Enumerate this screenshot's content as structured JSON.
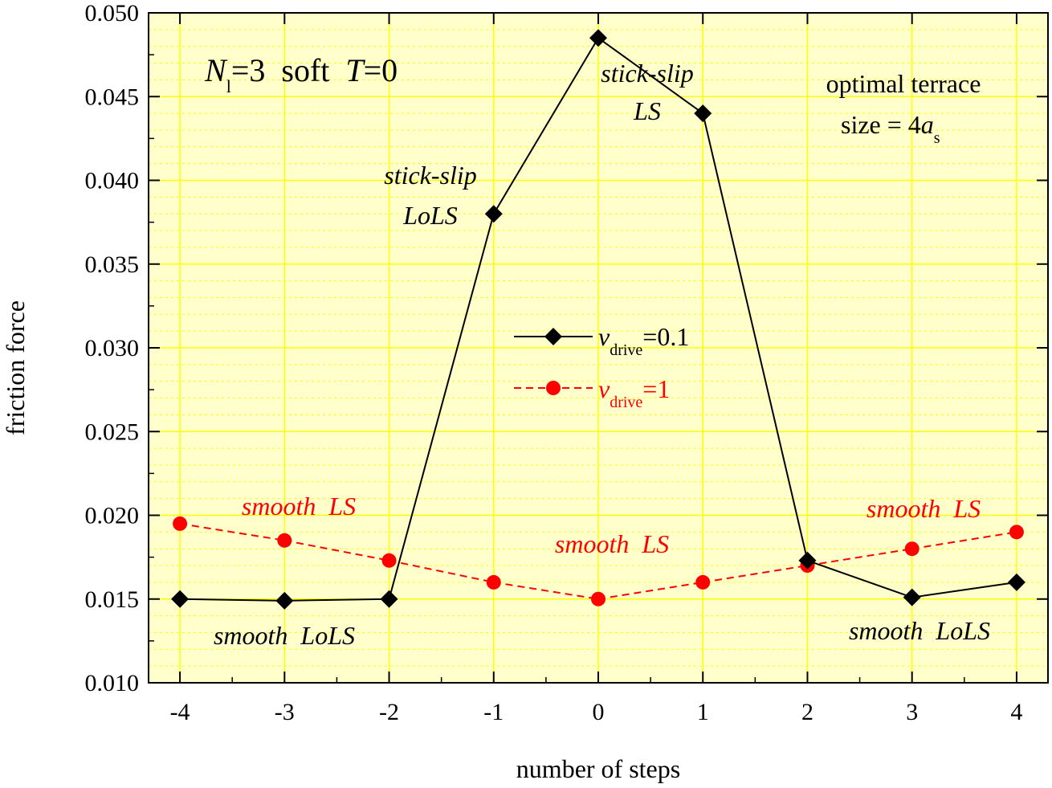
{
  "chart_data": {
    "type": "line",
    "xlabel": "number of steps",
    "ylabel": "friction force",
    "xlim": [
      -4.3,
      4.3
    ],
    "ylim": [
      0.01,
      0.05
    ],
    "x_ticks": [
      "-4",
      "-3",
      "-2",
      "-1",
      "0",
      "1",
      "2",
      "3",
      "4"
    ],
    "y_ticks": [
      "0.010",
      "0.015",
      "0.020",
      "0.025",
      "0.030",
      "0.035",
      "0.040",
      "0.045",
      "0.050"
    ],
    "grid": true,
    "plot_background": "#ffffcc",
    "grid_color": "#ffff00",
    "series": [
      {
        "legend_symbol": "v",
        "legend_subscript": "drive",
        "legend_value": "=0.1",
        "color": "#000000",
        "marker": "diamond",
        "line_style": "solid",
        "x": [
          -4,
          -3,
          -2,
          -1,
          0,
          1,
          2,
          3,
          4
        ],
        "y": [
          0.015,
          0.0149,
          0.015,
          0.038,
          0.0485,
          0.044,
          0.0173,
          0.0151,
          0.016
        ]
      },
      {
        "legend_symbol": "v",
        "legend_subscript": "drive",
        "legend_value": "=1",
        "color": "#ff0000",
        "marker": "circle",
        "line_style": "dashed",
        "x": [
          -4,
          -3,
          -2,
          -1,
          0,
          1,
          2,
          3,
          4
        ],
        "y": [
          0.0195,
          0.0185,
          0.0173,
          0.016,
          0.015,
          0.016,
          0.017,
          0.018,
          0.019
        ]
      }
    ],
    "title_parts": {
      "n_symbol": "N",
      "n_subscript": "l",
      "n_value": "=3",
      "middle": "soft",
      "t_symbol": "T",
      "t_value": "=0"
    },
    "optimal_text": {
      "line1": "optimal terrace",
      "line2_prefix": "size = 4",
      "line2_symbol": "a",
      "line2_subscript": "s"
    },
    "annotations": {
      "stick_slip_ls_1": "stick-slip",
      "stick_slip_ls_2": "LS",
      "stick_slip_lols_1": "stick-slip",
      "stick_slip_lols_2": "LoLS",
      "smooth_ls_left": "smooth  LS",
      "smooth_ls_center": "smooth  LS",
      "smooth_ls_right": "smooth  LS",
      "smooth_lols_left": "smooth  LoLS",
      "smooth_lols_right": "smooth  LoLS"
    }
  }
}
